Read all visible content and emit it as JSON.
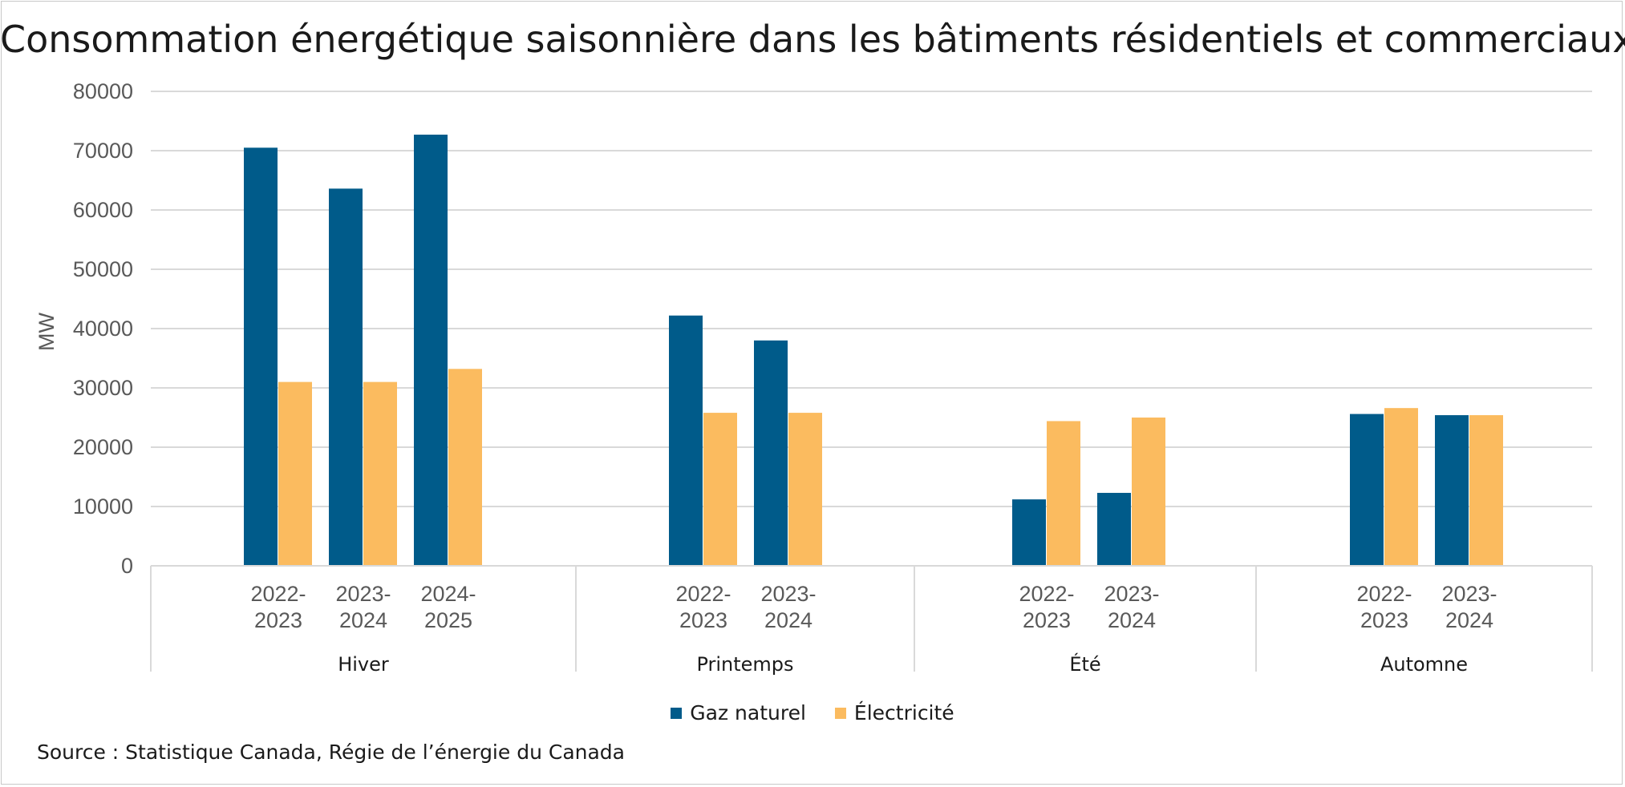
{
  "chart_data": {
    "type": "bar",
    "title": "Consommation énergétique saisonnière dans les bâtiments résidentiels et commerciaux",
    "ylabel": "MW",
    "xlabel": "",
    "ylim": [
      0,
      80000
    ],
    "yticks": [
      "0",
      "10000",
      "20000",
      "30000",
      "40000",
      "50000",
      "60000",
      "70000",
      "80000"
    ],
    "grid": true,
    "legend_position": "bottom",
    "groups": [
      {
        "season": "Hiver",
        "years": [
          {
            "label": [
              "2022-",
              "2023"
            ],
            "gaz": 70500,
            "elec": 31000
          },
          {
            "label": [
              "2023-",
              "2024"
            ],
            "gaz": 63600,
            "elec": 31000
          },
          {
            "label": [
              "2024-",
              "2025"
            ],
            "gaz": 72700,
            "elec": 33200
          }
        ]
      },
      {
        "season": "Printemps",
        "years": [
          {
            "label": [
              "2022-",
              "2023"
            ],
            "gaz": 42200,
            "elec": 25800
          },
          {
            "label": [
              "2023-",
              "2024"
            ],
            "gaz": 38000,
            "elec": 25800
          }
        ]
      },
      {
        "season": "Été",
        "years": [
          {
            "label": [
              "2022-",
              "2023"
            ],
            "gaz": 11200,
            "elec": 24400
          },
          {
            "label": [
              "2023-",
              "2024"
            ],
            "gaz": 12300,
            "elec": 25000
          }
        ]
      },
      {
        "season": "Automne",
        "years": [
          {
            "label": [
              "2022-",
              "2023"
            ],
            "gaz": 25600,
            "elec": 26600
          },
          {
            "label": [
              "2023-",
              "2024"
            ],
            "gaz": 25400,
            "elec": 25400
          }
        ]
      }
    ],
    "series": [
      {
        "name": "Gaz naturel",
        "color": "#005b8a"
      },
      {
        "name": "Électricité",
        "color": "#fbbb5f"
      }
    ]
  },
  "source": "Source : Statistique Canada, Régie de l’énergie du Canada"
}
